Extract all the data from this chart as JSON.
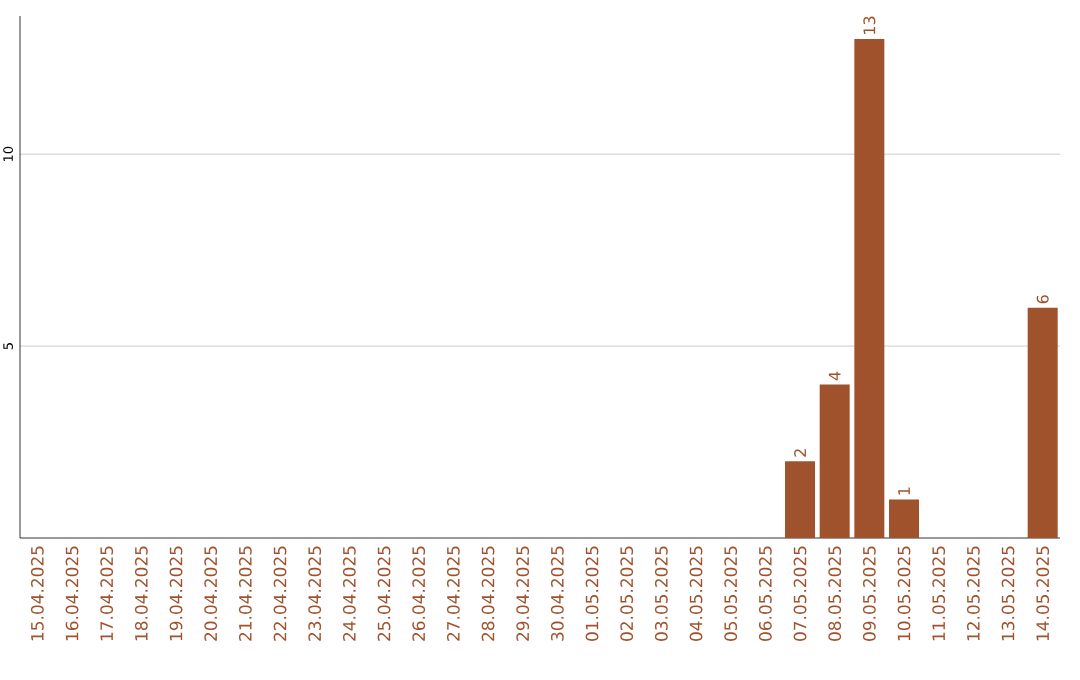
{
  "chart_data": {
    "type": "bar",
    "categories": [
      "15.04.2025",
      "16.04.2025",
      "17.04.2025",
      "18.04.2025",
      "19.04.2025",
      "20.04.2025",
      "21.04.2025",
      "22.04.2025",
      "23.04.2025",
      "24.04.2025",
      "25.04.2025",
      "26.04.2025",
      "27.04.2025",
      "28.04.2025",
      "29.04.2025",
      "30.04.2025",
      "01.05.2025",
      "02.05.2025",
      "03.05.2025",
      "04.05.2025",
      "05.05.2025",
      "06.05.2025",
      "07.05.2025",
      "08.05.2025",
      "09.05.2025",
      "10.05.2025",
      "11.05.2025",
      "12.05.2025",
      "13.05.2025",
      "14.05.2025"
    ],
    "values": [
      0,
      0,
      0,
      0,
      0,
      0,
      0,
      0,
      0,
      0,
      0,
      0,
      0,
      0,
      0,
      0,
      0,
      0,
      0,
      0,
      0,
      0,
      2,
      4,
      13,
      1,
      0,
      0,
      0,
      6
    ],
    "value_labels": [
      null,
      null,
      null,
      null,
      null,
      null,
      null,
      null,
      null,
      null,
      null,
      null,
      null,
      null,
      null,
      null,
      null,
      null,
      null,
      null,
      null,
      null,
      "2",
      "4",
      "13",
      "1",
      null,
      null,
      null,
      "6"
    ],
    "color": "#a0522d",
    "ylim": [
      0,
      13.6
    ],
    "yticks": [
      5,
      10
    ],
    "grid": "y"
  }
}
